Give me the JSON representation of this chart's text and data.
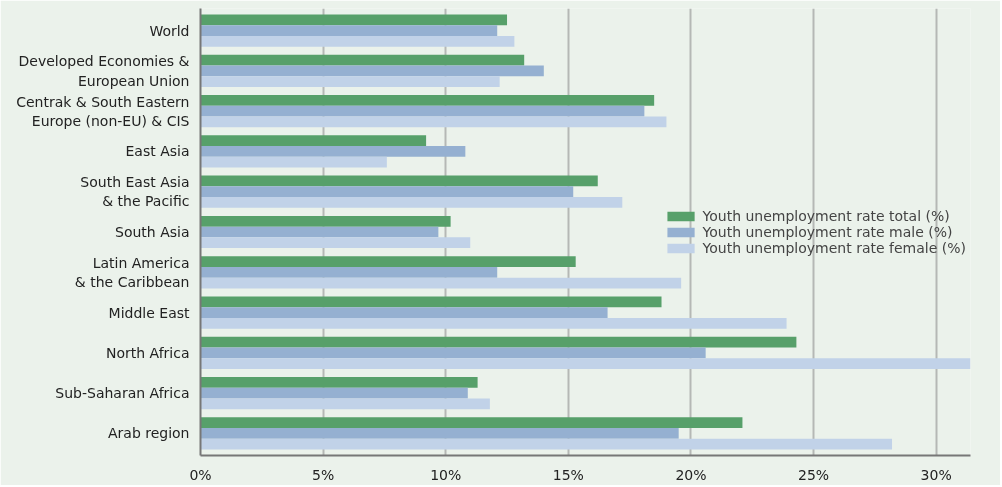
{
  "chart_data": {
    "type": "bar",
    "orientation": "horizontal",
    "categories": [
      "World",
      "Developed Economies &\nEuropean Union",
      "Centrak & South Eastern\nEurope (non-EU) & CIS",
      "East Asia",
      "South East Asia\n& the Pacific",
      "South Asia",
      "Latin America\n& the Caribbean",
      "Middle East",
      "North Africa",
      "Sub-Saharan Africa",
      "Arab region"
    ],
    "series": [
      {
        "name": "Youth unemployment rate total (%)",
        "color": "#57a06a",
        "values": [
          12.5,
          13.2,
          18.5,
          9.2,
          16.2,
          10.2,
          15.3,
          18.8,
          24.3,
          11.3,
          22.1
        ]
      },
      {
        "name": "Youth unemployment rate male (%)",
        "color": "#95b0d1",
        "values": [
          12.1,
          14.0,
          18.1,
          10.8,
          15.2,
          9.7,
          12.1,
          16.6,
          20.6,
          10.9,
          19.5
        ]
      },
      {
        "name": "Youth unemployment rate female (%)",
        "color": "#c1d2e8",
        "values": [
          12.8,
          12.2,
          19.0,
          7.6,
          17.2,
          11.0,
          19.6,
          23.9,
          31.4,
          11.8,
          28.2
        ]
      }
    ],
    "xlim": [
      0,
      31.4
    ],
    "xticks": [
      {
        "value": 0,
        "label": "0%"
      },
      {
        "value": 5,
        "label": "5%"
      },
      {
        "value": 10,
        "label": "10%"
      },
      {
        "value": 15,
        "label": "15%"
      },
      {
        "value": 20,
        "label": "20%"
      },
      {
        "value": 25,
        "label": "25%"
      },
      {
        "value": 30,
        "label": "30%"
      }
    ],
    "grid": "x",
    "legend": "right"
  }
}
